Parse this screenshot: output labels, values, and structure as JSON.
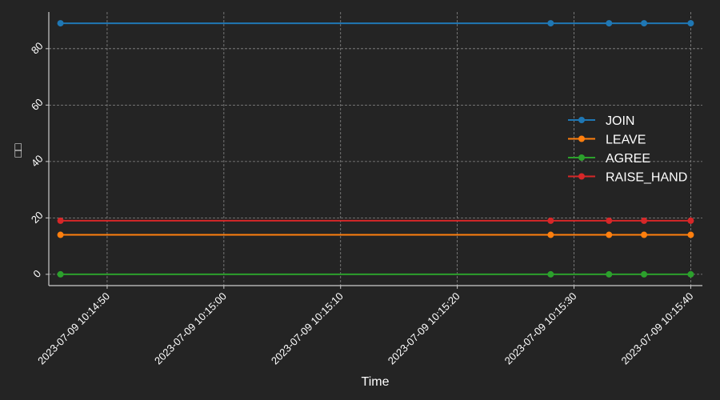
{
  "chart_data": {
    "type": "line",
    "title": "",
    "xlabel": "Time",
    "ylabel": "□□",
    "x": [
      "2023-07-09 10:14:46",
      "2023-07-09 10:15:28",
      "2023-07-09 10:15:33",
      "2023-07-09 10:15:36",
      "2023-07-09 10:15:40"
    ],
    "xlim": [
      "2023-07-09 10:14:45",
      "2023-07-09 10:15:41"
    ],
    "xticks": [
      "2023-07-09 10:14:50",
      "2023-07-09 10:15:00",
      "2023-07-09 10:15:10",
      "2023-07-09 10:15:20",
      "2023-07-09 10:15:30",
      "2023-07-09 10:15:40"
    ],
    "ylim": [
      -4,
      93
    ],
    "yticks": [
      0,
      20,
      40,
      60,
      80
    ],
    "grid": true,
    "legend_position": "right",
    "series": [
      {
        "name": "JOIN",
        "color": "#1f77b4",
        "values": [
          89,
          89,
          89,
          89,
          89
        ]
      },
      {
        "name": "LEAVE",
        "color": "#ff7f0e",
        "values": [
          14,
          14,
          14,
          14,
          14
        ]
      },
      {
        "name": "AGREE",
        "color": "#2ca02c",
        "values": [
          0,
          0,
          0,
          0,
          0
        ]
      },
      {
        "name": "RAISE_HAND",
        "color": "#d62728",
        "values": [
          19,
          19,
          19,
          19,
          19
        ]
      }
    ],
    "colors": {
      "background": "#242424",
      "axis": "#cccccc",
      "grid": "#888888",
      "text": "#ffffff"
    }
  }
}
